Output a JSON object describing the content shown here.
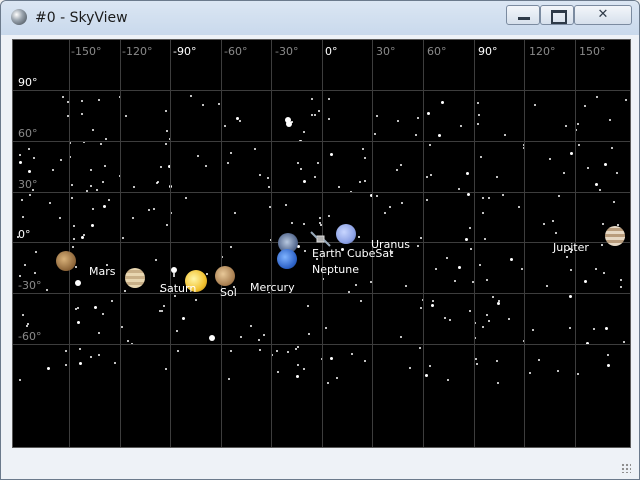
{
  "window": {
    "title": "#0 - SkyView"
  },
  "sky": {
    "lon_labels": [
      "-150°",
      "-120°",
      "-90°",
      "-60°",
      "-30°",
      "0°",
      "30°",
      "60°",
      "90°",
      "120°",
      "150°"
    ],
    "lat_labels": [
      "90°",
      "60°",
      "30°",
      "0°",
      "-30°",
      "-60°"
    ],
    "bodies": [
      {
        "label": "Mars",
        "name": "mars"
      },
      {
        "label": "Saturn",
        "name": "saturn"
      },
      {
        "label": "Sol",
        "name": "sol"
      },
      {
        "label": "Mercury",
        "name": "mercury"
      },
      {
        "label": "Earth",
        "name": "earth"
      },
      {
        "label": "CubeSat",
        "name": "cubesat"
      },
      {
        "label": "Neptune",
        "name": "neptune"
      },
      {
        "label": "Uranus",
        "name": "uranus"
      },
      {
        "label": "Jupiter",
        "name": "jupiter"
      }
    ]
  },
  "colors": {
    "sky_background": "#000000",
    "grid": "#3d3d3d",
    "label": "#ffffff"
  }
}
